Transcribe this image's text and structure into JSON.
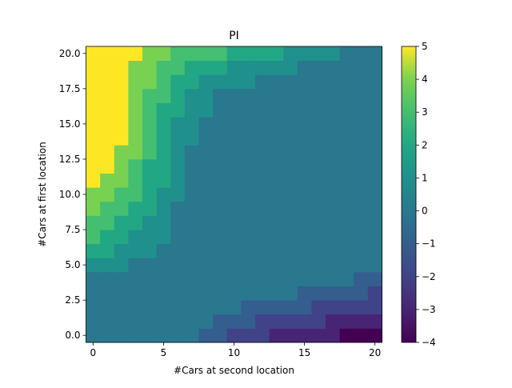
{
  "chart_data": {
    "type": "heatmap",
    "title": "PI",
    "xlabel": "#Cars at second location",
    "ylabel": "#Cars at first location",
    "colormap": "viridis",
    "clim": [
      -4,
      5
    ],
    "x_range": [
      -0.5,
      20.5
    ],
    "y_range": [
      -0.5,
      20.5
    ],
    "x_ticks": [
      0,
      5,
      10,
      15,
      20
    ],
    "x_tick_labels": [
      "0",
      "5",
      "10",
      "15",
      "20"
    ],
    "y_ticks": [
      0,
      2.5,
      5,
      7.5,
      10,
      12.5,
      15,
      17.5,
      20
    ],
    "y_tick_labels": [
      "0.0",
      "2.5",
      "5.0",
      "7.5",
      "10.0",
      "12.5",
      "15.0",
      "17.5",
      "20.0"
    ],
    "colorbar_ticks": [
      -4,
      -3,
      -2,
      -1,
      0,
      1,
      2,
      3,
      4,
      5
    ],
    "colorbar_tick_labels": [
      "−4",
      "−3",
      "−2",
      "−1",
      "0",
      "1",
      "2",
      "3",
      "4",
      "5"
    ],
    "rows_note": "rows[i] = policy values for first-location count i, columns j = second-location count 0..20",
    "rows": [
      [
        0,
        0,
        0,
        0,
        0,
        0,
        0,
        0,
        -1,
        -1,
        -2,
        -2,
        -2,
        -3,
        -3,
        -3,
        -3,
        -3,
        -4,
        -4,
        -4
      ],
      [
        0,
        0,
        0,
        0,
        0,
        0,
        0,
        0,
        0,
        -1,
        -1,
        -1,
        -2,
        -2,
        -2,
        -2,
        -2,
        -3,
        -3,
        -3,
        -3
      ],
      [
        0,
        0,
        0,
        0,
        0,
        0,
        0,
        0,
        0,
        0,
        0,
        -1,
        -1,
        -1,
        -1,
        -1,
        -2,
        -2,
        -2,
        -2,
        -2
      ],
      [
        0,
        0,
        0,
        0,
        0,
        0,
        0,
        0,
        0,
        0,
        0,
        0,
        0,
        0,
        0,
        -1,
        -1,
        -1,
        -1,
        -1,
        -2
      ],
      [
        0,
        0,
        0,
        0,
        0,
        0,
        0,
        0,
        0,
        0,
        0,
        0,
        0,
        0,
        0,
        0,
        0,
        0,
        0,
        -1,
        -1
      ],
      [
        1,
        1,
        1,
        0,
        0,
        0,
        0,
        0,
        0,
        0,
        0,
        0,
        0,
        0,
        0,
        0,
        0,
        0,
        0,
        0,
        0
      ],
      [
        2,
        2,
        1,
        1,
        1,
        0,
        0,
        0,
        0,
        0,
        0,
        0,
        0,
        0,
        0,
        0,
        0,
        0,
        0,
        0,
        0
      ],
      [
        3,
        2,
        2,
        1,
        1,
        1,
        0,
        0,
        0,
        0,
        0,
        0,
        0,
        0,
        0,
        0,
        0,
        0,
        0,
        0,
        0
      ],
      [
        3,
        3,
        2,
        2,
        1,
        1,
        0,
        0,
        0,
        0,
        0,
        0,
        0,
        0,
        0,
        0,
        0,
        0,
        0,
        0,
        0
      ],
      [
        4,
        3,
        3,
        2,
        2,
        1,
        0,
        0,
        0,
        0,
        0,
        0,
        0,
        0,
        0,
        0,
        0,
        0,
        0,
        0,
        0
      ],
      [
        4,
        4,
        3,
        3,
        2,
        1,
        1,
        0,
        0,
        0,
        0,
        0,
        0,
        0,
        0,
        0,
        0,
        0,
        0,
        0,
        0
      ],
      [
        5,
        4,
        4,
        3,
        2,
        2,
        1,
        0,
        0,
        0,
        0,
        0,
        0,
        0,
        0,
        0,
        0,
        0,
        0,
        0,
        0
      ],
      [
        5,
        5,
        4,
        3,
        2,
        2,
        1,
        0,
        0,
        0,
        0,
        0,
        0,
        0,
        0,
        0,
        0,
        0,
        0,
        0,
        0
      ],
      [
        5,
        5,
        4,
        4,
        3,
        2,
        1,
        0,
        0,
        0,
        0,
        0,
        0,
        0,
        0,
        0,
        0,
        0,
        0,
        0,
        0
      ],
      [
        5,
        5,
        5,
        4,
        3,
        2,
        1,
        1,
        0,
        0,
        0,
        0,
        0,
        0,
        0,
        0,
        0,
        0,
        0,
        0,
        0
      ],
      [
        5,
        5,
        5,
        4,
        3,
        2,
        1,
        1,
        0,
        0,
        0,
        0,
        0,
        0,
        0,
        0,
        0,
        0,
        0,
        0,
        0
      ],
      [
        5,
        5,
        5,
        4,
        3,
        2,
        2,
        1,
        1,
        0,
        0,
        0,
        0,
        0,
        0,
        0,
        0,
        0,
        0,
        0,
        0
      ],
      [
        5,
        5,
        5,
        4,
        3,
        3,
        2,
        1,
        1,
        0,
        0,
        0,
        0,
        0,
        0,
        0,
        0,
        0,
        0,
        0,
        0
      ],
      [
        5,
        5,
        5,
        4,
        4,
        3,
        2,
        2,
        1,
        1,
        1,
        1,
        0,
        0,
        0,
        0,
        0,
        0,
        0,
        0,
        0
      ],
      [
        5,
        5,
        5,
        4,
        4,
        3,
        3,
        2,
        2,
        2,
        1,
        1,
        1,
        1,
        1,
        0,
        0,
        0,
        0,
        0,
        0
      ],
      [
        5,
        5,
        5,
        5,
        4,
        4,
        3,
        3,
        3,
        3,
        2,
        2,
        2,
        2,
        1,
        1,
        1,
        1,
        0,
        0,
        0
      ]
    ]
  }
}
